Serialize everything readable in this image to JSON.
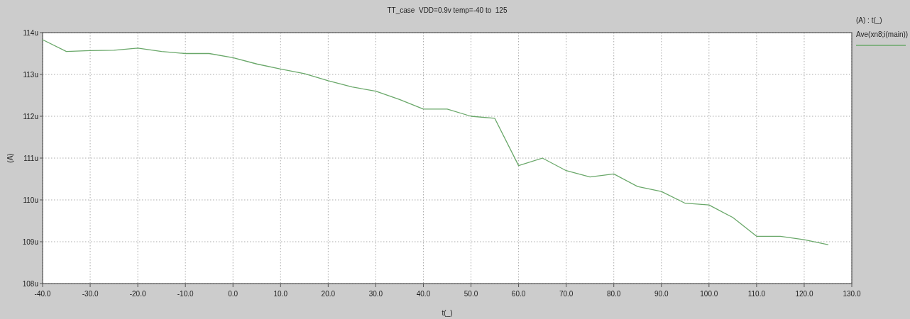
{
  "chart_data": {
    "type": "line",
    "title": "TT_case  VDD=0.9v temp=-40 to  125",
    "xlabel": "t(_)",
    "ylabel": "(A)",
    "legend_title": "(A) : t(_)",
    "x": [
      -40,
      -35,
      -30,
      -25,
      -20,
      -15,
      -10,
      -5,
      0,
      5,
      10,
      15,
      20,
      25,
      30,
      35,
      40,
      45,
      50,
      55,
      60,
      65,
      70,
      75,
      80,
      85,
      90,
      95,
      100,
      105,
      110,
      115,
      120,
      125
    ],
    "series": [
      {
        "name": "Ave(xn8;i(main))",
        "color": "#6aa86a",
        "values": [
          113.83,
          113.55,
          113.57,
          113.58,
          113.63,
          113.55,
          113.5,
          113.5,
          113.4,
          113.25,
          113.13,
          113.02,
          112.85,
          112.7,
          112.6,
          112.4,
          112.17,
          112.17,
          112.0,
          111.95,
          110.82,
          111.0,
          110.7,
          110.55,
          110.62,
          110.32,
          110.2,
          109.92,
          109.88,
          109.58,
          109.13,
          109.13,
          109.05,
          108.93
        ]
      }
    ],
    "xlim": [
      -40,
      130
    ],
    "xticks": [
      {
        "value": -40,
        "label": "-40.0"
      },
      {
        "value": -30,
        "label": "-30.0"
      },
      {
        "value": -20,
        "label": "-20.0"
      },
      {
        "value": -10,
        "label": "-10.0"
      },
      {
        "value": 0,
        "label": "0.0"
      },
      {
        "value": 10,
        "label": "10.0"
      },
      {
        "value": 20,
        "label": "20.0"
      },
      {
        "value": 30,
        "label": "30.0"
      },
      {
        "value": 40,
        "label": "40.0"
      },
      {
        "value": 50,
        "label": "50.0"
      },
      {
        "value": 60,
        "label": "60.0"
      },
      {
        "value": 70,
        "label": "70.0"
      },
      {
        "value": 80,
        "label": "80.0"
      },
      {
        "value": 90,
        "label": "90.0"
      },
      {
        "value": 100,
        "label": "100.0"
      },
      {
        "value": 110,
        "label": "110.0"
      },
      {
        "value": 120,
        "label": "120.0"
      },
      {
        "value": 130,
        "label": "130.0"
      }
    ],
    "ylim": [
      108,
      114
    ],
    "yticks": [
      {
        "value": 108,
        "label": "108u"
      },
      {
        "value": 109,
        "label": "109u"
      },
      {
        "value": 110,
        "label": "110u"
      },
      {
        "value": 111,
        "label": "111u"
      },
      {
        "value": 112,
        "label": "112u"
      },
      {
        "value": 113,
        "label": "113u"
      },
      {
        "value": 114,
        "label": "114u"
      }
    ],
    "grid": true,
    "legend": "top right",
    "marker": "none",
    "line_style": "solid"
  }
}
